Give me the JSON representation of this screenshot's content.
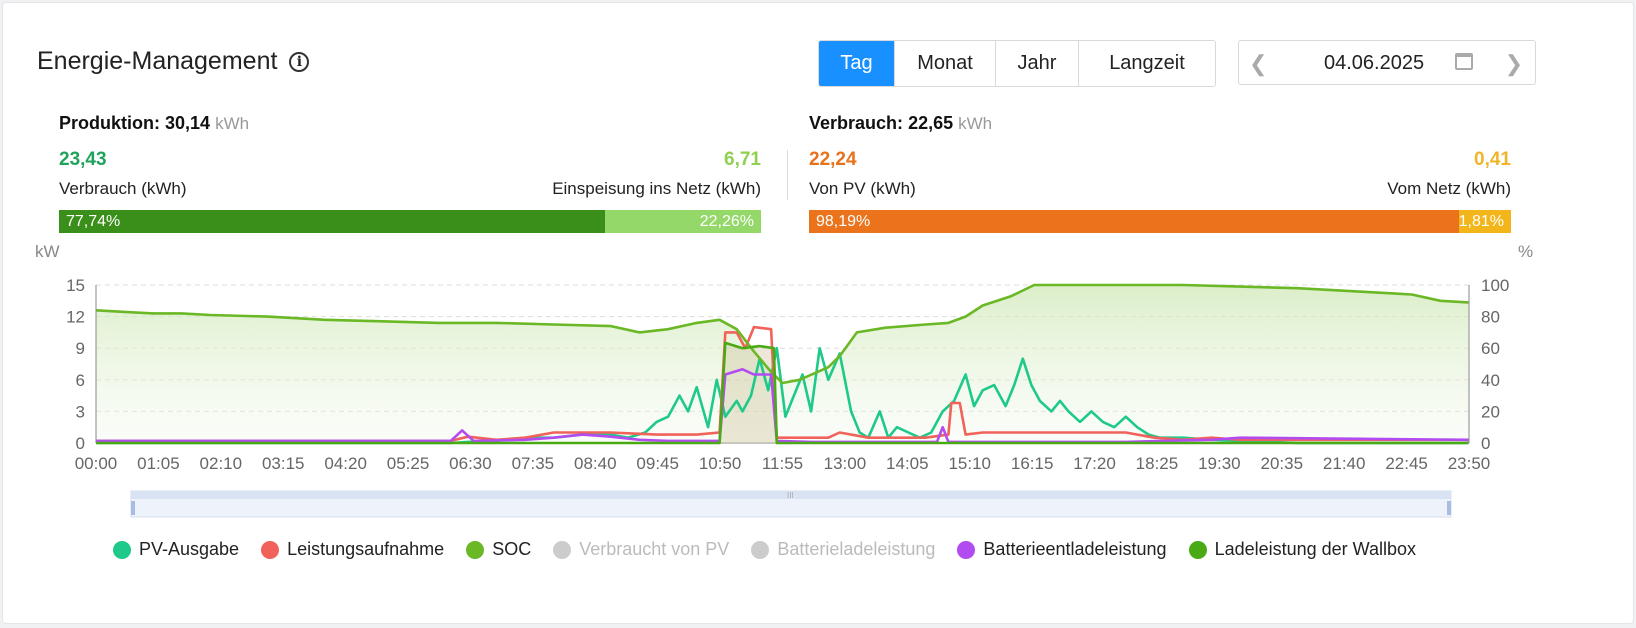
{
  "header": {
    "title": "Energie-Management"
  },
  "tabs": [
    {
      "label": "Tag",
      "active": true
    },
    {
      "label": "Monat",
      "active": false
    },
    {
      "label": "Jahr",
      "active": false
    },
    {
      "label": "Langzeit",
      "active": false
    }
  ],
  "date_picker": {
    "value": "04.06.2025",
    "prev_icon": "chevron-left-icon",
    "next_icon": "chevron-right-icon",
    "calendar_icon": "calendar-icon"
  },
  "production": {
    "label": "Produktion:",
    "value": "30,14",
    "unit": "kWh",
    "left_value": "23,43",
    "left_label": "Verbrauch (kWh)",
    "left_color": "#1fa35c",
    "right_value": "6,71",
    "right_label": "Einspeisung ins Netz (kWh)",
    "right_color": "#8fd14f",
    "left_percent_text": "77,74%",
    "right_percent_text": "22,26%",
    "left_fraction": 0.7774,
    "bar_left_color": "#3a8e1a",
    "bar_right_color": "#95d86a"
  },
  "consumption": {
    "label": "Verbrauch:",
    "value": "22,65",
    "unit": "kWh",
    "left_value": "22,24",
    "left_label": "Von PV (kWh)",
    "left_color": "#e8711a",
    "right_value": "0,41",
    "right_label": "Vom Netz (kWh)",
    "right_color": "#f0b429",
    "left_percent_text": "98,19%",
    "right_percent_text": "1,81%",
    "left_fraction": 0.9819,
    "bar_left_color": "#ea731c",
    "bar_right_color": "#f2b61a"
  },
  "chart_data": {
    "type": "line",
    "left_axis_unit": "kW",
    "right_axis_unit": "%",
    "y_left": {
      "min": 0,
      "max": 15,
      "ticks": [
        "0",
        "3",
        "6",
        "9",
        "12",
        "15"
      ]
    },
    "y_right": {
      "min": 0,
      "max": 100,
      "ticks": [
        "0",
        "20",
        "40",
        "60",
        "80",
        "100"
      ]
    },
    "x_ticks": [
      "00:00",
      "01:05",
      "02:10",
      "03:15",
      "04:20",
      "05:25",
      "06:30",
      "07:35",
      "08:40",
      "09:45",
      "10:50",
      "11:55",
      "13:00",
      "14:05",
      "15:10",
      "16:15",
      "17:20",
      "18:25",
      "19:30",
      "20:35",
      "21:40",
      "22:45",
      "23:50"
    ],
    "grid": "horizontal-dashed",
    "series": [
      {
        "name": "PV-Ausgabe",
        "color": "#1ec98a",
        "axis": "left",
        "points": [
          [
            0,
            0
          ],
          [
            6.2,
            0
          ],
          [
            6.5,
            0.1
          ],
          [
            7.0,
            0.2
          ],
          [
            7.5,
            0.5
          ],
          [
            8.0,
            0.5
          ],
          [
            8.5,
            0.8
          ],
          [
            9.0,
            0.8
          ],
          [
            9.3,
            0.5
          ],
          [
            9.6,
            1.0
          ],
          [
            9.8,
            2.0
          ],
          [
            10.0,
            2.5
          ],
          [
            10.2,
            4.5
          ],
          [
            10.35,
            3.0
          ],
          [
            10.5,
            5.3
          ],
          [
            10.7,
            1.5
          ],
          [
            10.85,
            6.0
          ],
          [
            11.0,
            2.5
          ],
          [
            11.2,
            4.0
          ],
          [
            11.3,
            3.0
          ],
          [
            11.45,
            4.5
          ],
          [
            11.6,
            8.0
          ],
          [
            11.75,
            5.0
          ],
          [
            11.9,
            9.0
          ],
          [
            12.05,
            2.5
          ],
          [
            12.2,
            4.5
          ],
          [
            12.35,
            6.5
          ],
          [
            12.5,
            3.0
          ],
          [
            12.65,
            9.0
          ],
          [
            12.8,
            6.0
          ],
          [
            13.0,
            8.5
          ],
          [
            13.2,
            3.0
          ],
          [
            13.35,
            1.0
          ],
          [
            13.5,
            0.5
          ],
          [
            13.7,
            3.0
          ],
          [
            13.85,
            0.5
          ],
          [
            14.0,
            1.5
          ],
          [
            14.2,
            1.0
          ],
          [
            14.4,
            0.5
          ],
          [
            14.6,
            1.0
          ],
          [
            14.8,
            3.0
          ],
          [
            15.0,
            4.0
          ],
          [
            15.2,
            6.5
          ],
          [
            15.35,
            3.5
          ],
          [
            15.5,
            5.0
          ],
          [
            15.7,
            5.5
          ],
          [
            15.9,
            3.5
          ],
          [
            16.05,
            5.5
          ],
          [
            16.2,
            8.0
          ],
          [
            16.35,
            5.5
          ],
          [
            16.5,
            4.0
          ],
          [
            16.7,
            3.0
          ],
          [
            16.85,
            4.0
          ],
          [
            17.0,
            3.0
          ],
          [
            17.2,
            2.0
          ],
          [
            17.4,
            3.0
          ],
          [
            17.6,
            2.0
          ],
          [
            17.8,
            1.5
          ],
          [
            18.0,
            2.5
          ],
          [
            18.2,
            1.5
          ],
          [
            18.4,
            0.8
          ],
          [
            18.6,
            0.5
          ],
          [
            19.0,
            0.5
          ],
          [
            19.5,
            0.3
          ],
          [
            20.0,
            0.2
          ],
          [
            20.5,
            0.1
          ],
          [
            21.0,
            0
          ],
          [
            23.99,
            0
          ]
        ]
      },
      {
        "name": "Leistungsaufnahme",
        "color": "#f0625a",
        "axis": "left",
        "points": [
          [
            0,
            0.2
          ],
          [
            6.2,
            0.2
          ],
          [
            6.5,
            0.6
          ],
          [
            7.0,
            0.3
          ],
          [
            7.5,
            0.5
          ],
          [
            8.0,
            1.0
          ],
          [
            9.0,
            1.0
          ],
          [
            9.8,
            0.8
          ],
          [
            10.0,
            0.8
          ],
          [
            10.5,
            0.8
          ],
          [
            10.9,
            1.0
          ],
          [
            11.0,
            10.5
          ],
          [
            11.2,
            10.5
          ],
          [
            11.35,
            9.0
          ],
          [
            11.5,
            11.0
          ],
          [
            11.8,
            10.8
          ],
          [
            11.9,
            0.5
          ],
          [
            12.2,
            0.5
          ],
          [
            12.8,
            0.5
          ],
          [
            13.0,
            1.0
          ],
          [
            13.5,
            0.5
          ],
          [
            14.0,
            0.5
          ],
          [
            14.5,
            0.5
          ],
          [
            14.9,
            0.8
          ],
          [
            14.95,
            3.8
          ],
          [
            15.1,
            3.8
          ],
          [
            15.2,
            0.8
          ],
          [
            15.5,
            1.0
          ],
          [
            16.5,
            1.0
          ],
          [
            17.5,
            1.0
          ],
          [
            18.0,
            1.0
          ],
          [
            18.5,
            0.5
          ],
          [
            19.0,
            0.3
          ],
          [
            19.5,
            0.5
          ],
          [
            20.0,
            0.3
          ],
          [
            22.0,
            0.3
          ],
          [
            23.99,
            0.3
          ]
        ]
      },
      {
        "name": "SOC",
        "color": "#6ab825",
        "axis": "right",
        "fill": true,
        "points": [
          [
            0,
            84
          ],
          [
            0.5,
            83
          ],
          [
            1.0,
            82
          ],
          [
            1.5,
            82
          ],
          [
            2.0,
            81
          ],
          [
            3.0,
            80
          ],
          [
            4.0,
            78
          ],
          [
            5.0,
            77
          ],
          [
            6.0,
            76
          ],
          [
            7.0,
            76
          ],
          [
            8.0,
            75
          ],
          [
            9.0,
            74
          ],
          [
            9.5,
            70
          ],
          [
            10.0,
            72
          ],
          [
            10.5,
            76
          ],
          [
            10.9,
            78
          ],
          [
            11.2,
            72
          ],
          [
            11.5,
            58
          ],
          [
            11.8,
            45
          ],
          [
            12.0,
            38
          ],
          [
            12.3,
            40
          ],
          [
            12.8,
            48
          ],
          [
            13.0,
            55
          ],
          [
            13.3,
            70
          ],
          [
            13.8,
            73
          ],
          [
            14.5,
            75
          ],
          [
            14.9,
            76
          ],
          [
            15.2,
            80
          ],
          [
            15.5,
            87
          ],
          [
            16.0,
            93
          ],
          [
            16.4,
            100
          ],
          [
            17.0,
            100
          ],
          [
            18.0,
            100
          ],
          [
            19.0,
            100
          ],
          [
            20.0,
            99
          ],
          [
            21.0,
            98
          ],
          [
            22.0,
            96
          ],
          [
            23.0,
            94
          ],
          [
            23.5,
            90
          ],
          [
            23.99,
            89
          ]
        ]
      },
      {
        "name": "Verbraucht von PV",
        "color": "#cccccc",
        "axis": "left",
        "hidden": true,
        "points": []
      },
      {
        "name": "Batterieladeleistung",
        "color": "#cccccc",
        "axis": "left",
        "hidden": true,
        "points": []
      },
      {
        "name": "Batterieentladeleistung",
        "color": "#b34cf0",
        "axis": "left",
        "points": [
          [
            0,
            0.2
          ],
          [
            6.2,
            0.2
          ],
          [
            6.4,
            1.2
          ],
          [
            6.6,
            0.2
          ],
          [
            7.5,
            0.3
          ],
          [
            8.0,
            0.5
          ],
          [
            8.5,
            0.8
          ],
          [
            9.0,
            0.6
          ],
          [
            9.5,
            0.3
          ],
          [
            10.0,
            0.2
          ],
          [
            10.9,
            0.2
          ],
          [
            11.0,
            6.5
          ],
          [
            11.3,
            7.0
          ],
          [
            11.5,
            6.5
          ],
          [
            11.8,
            6.5
          ],
          [
            11.9,
            0.2
          ],
          [
            12.5,
            0.1
          ],
          [
            14.7,
            0.1
          ],
          [
            14.8,
            1.5
          ],
          [
            14.9,
            0.1
          ],
          [
            18.0,
            0.1
          ],
          [
            19.5,
            0.3
          ],
          [
            20.0,
            0.5
          ],
          [
            23.99,
            0.3
          ]
        ]
      },
      {
        "name": "Ladeleistung der Wallbox",
        "color": "#4aaa15",
        "axis": "left",
        "points": [
          [
            0,
            0
          ],
          [
            10.9,
            0
          ],
          [
            11.0,
            9.5
          ],
          [
            11.3,
            9.0
          ],
          [
            11.6,
            9.2
          ],
          [
            11.85,
            9.0
          ],
          [
            11.9,
            0
          ],
          [
            23.99,
            0
          ]
        ]
      }
    ]
  },
  "legend": [
    {
      "label": "PV-Ausgabe",
      "color": "#1ec98a",
      "enabled": true
    },
    {
      "label": "Leistungsaufnahme",
      "color": "#f0625a",
      "enabled": true
    },
    {
      "label": "SOC",
      "color": "#6ab825",
      "enabled": true
    },
    {
      "label": "Verbraucht von PV",
      "color": "#cccccc",
      "enabled": false
    },
    {
      "label": "Batterieladeleistung",
      "color": "#cccccc",
      "enabled": false
    },
    {
      "label": "Batterieentladeleistung",
      "color": "#b34cf0",
      "enabled": true
    },
    {
      "label": "Ladeleistung der Wallbox",
      "color": "#4aaa15",
      "enabled": true
    }
  ]
}
